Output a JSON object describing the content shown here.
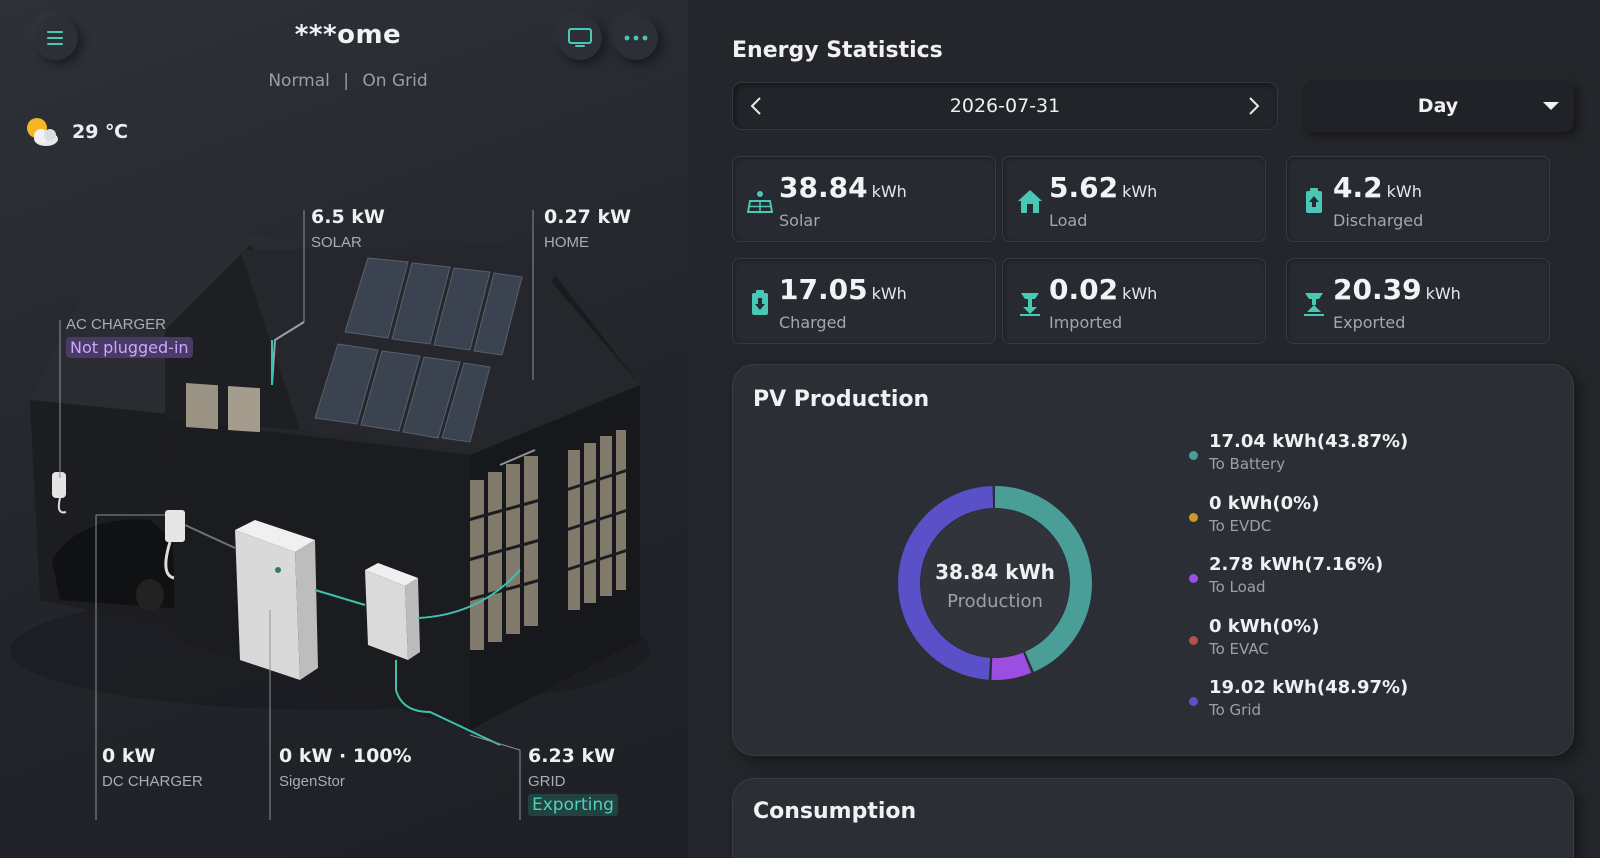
{
  "header": {
    "title": "***ome",
    "mode": "Normal",
    "grid_state": "On Grid",
    "separator": "|"
  },
  "weather": {
    "temperature": "29 ℃",
    "icon": "partly-cloudy-icon"
  },
  "flows": {
    "solar": {
      "value": "6.5 kW",
      "label": "SOLAR"
    },
    "home": {
      "value": "0.27 kW",
      "label": "HOME"
    },
    "ac_charger": {
      "label": "AC CHARGER",
      "status": "Not plugged-in"
    },
    "dc_charger": {
      "value": "0 kW",
      "label": "DC CHARGER"
    },
    "battery": {
      "value": "0 kW · 100%",
      "label": "SigenStor"
    },
    "grid": {
      "value": "6.23 kW",
      "label": "GRID",
      "status": "Exporting"
    }
  },
  "stats": {
    "title": "Energy Statistics",
    "date": "2026-07-31",
    "range": "Day",
    "cards": [
      {
        "value": "38.84",
        "unit": "kWh",
        "label": "Solar",
        "icon": "solar-panel-icon"
      },
      {
        "value": "5.62",
        "unit": "kWh",
        "label": "Load",
        "icon": "home-icon"
      },
      {
        "value": "4.2",
        "unit": "kWh",
        "label": "Discharged",
        "icon": "battery-discharge-icon"
      },
      {
        "value": "17.05",
        "unit": "kWh",
        "label": "Charged",
        "icon": "battery-charge-icon"
      },
      {
        "value": "0.02",
        "unit": "kWh",
        "label": "Imported",
        "icon": "grid-import-icon"
      },
      {
        "value": "20.39",
        "unit": "kWh",
        "label": "Exported",
        "icon": "grid-export-icon"
      }
    ]
  },
  "pv": {
    "title": "PV Production",
    "center_value": "38.84 kWh",
    "center_label": "Production",
    "items": [
      {
        "value": "17.04 kWh(43.87%)",
        "label": "To Battery",
        "pct": 43.87,
        "color": "#4a9e98"
      },
      {
        "value": "0 kWh(0%)",
        "label": "To EVDC",
        "pct": 0,
        "color": "#c99a2e"
      },
      {
        "value": "2.78 kWh(7.16%)",
        "label": "To Load",
        "pct": 7.16,
        "color": "#9b4ee0"
      },
      {
        "value": "0 kWh(0%)",
        "label": "To EVAC",
        "pct": 0,
        "color": "#b4504e"
      },
      {
        "value": "19.02 kWh(48.97%)",
        "label": "To Grid",
        "pct": 48.97,
        "color": "#5a51c9"
      }
    ]
  },
  "consumption": {
    "title": "Consumption"
  }
}
